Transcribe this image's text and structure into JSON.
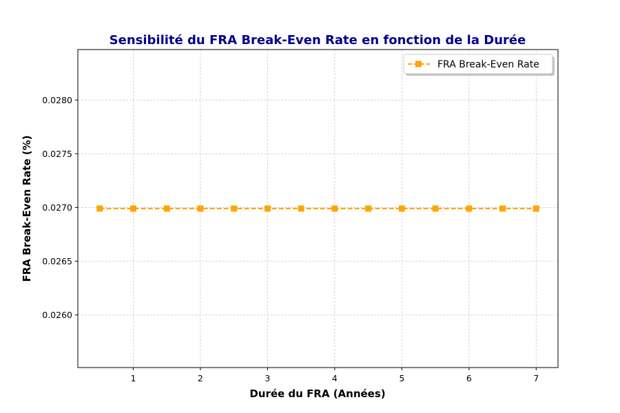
{
  "chart_data": {
    "type": "line",
    "title": "Sensibilité du FRA Break-Even Rate en fonction de la Durée",
    "xlabel": "Durée du FRA (Années)",
    "ylabel": "FRA Break-Even Rate (%)",
    "x": [
      0.5,
      1,
      1.5,
      2,
      2.5,
      3,
      3.5,
      4,
      4.5,
      5,
      5.5,
      6,
      6.5,
      7
    ],
    "series": [
      {
        "name": "FRA Break-Even Rate",
        "values": [
          0.02699,
          0.02699,
          0.02699,
          0.02699,
          0.02699,
          0.02699,
          0.02699,
          0.02699,
          0.02699,
          0.02699,
          0.02699,
          0.02699,
          0.02699,
          0.02699
        ],
        "color": "#ffa500",
        "line_style": "dashed",
        "marker": "square"
      }
    ],
    "xlim": [
      0.175,
      7.325
    ],
    "ylim": [
      0.02551,
      0.02847
    ],
    "x_ticks": [
      1,
      2,
      3,
      4,
      5,
      6,
      7
    ],
    "x_tick_labels": [
      "1",
      "2",
      "3",
      "4",
      "5",
      "6",
      "7"
    ],
    "y_ticks": [
      0.026,
      0.0265,
      0.027,
      0.0275,
      0.028
    ],
    "y_tick_labels": [
      "0.0260",
      "0.0265",
      "0.0270",
      "0.0275",
      "0.0280"
    ],
    "grid": true,
    "legend_position": "top-right",
    "title_color": "#00008b"
  }
}
